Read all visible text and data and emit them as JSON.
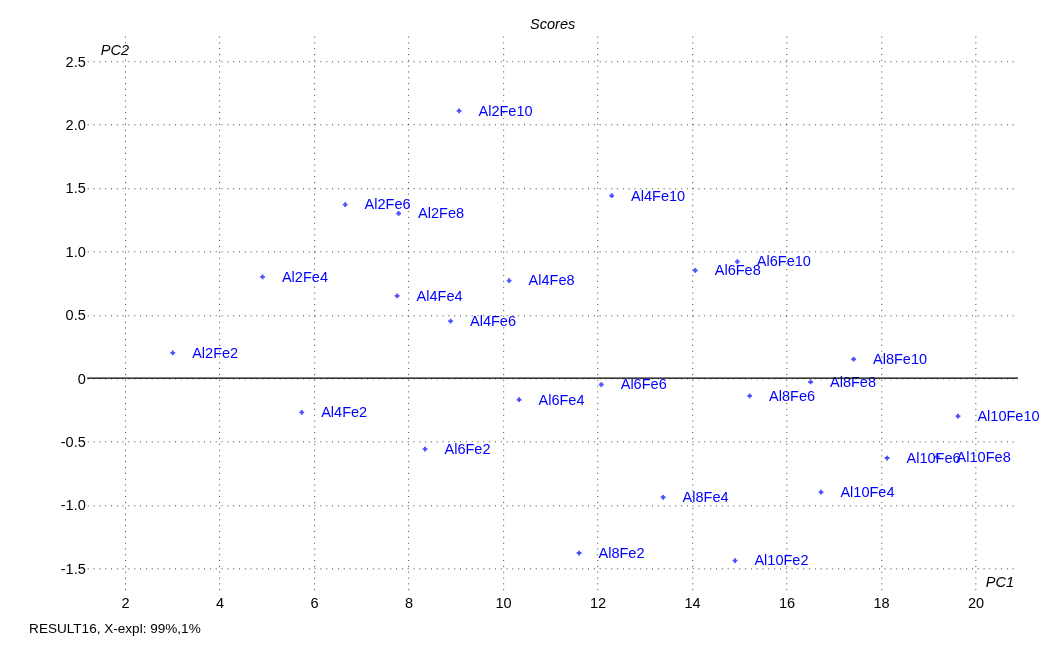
{
  "chart_data": {
    "type": "scatter",
    "title": "Scores",
    "xlabel": "PC1",
    "ylabel": "PC2",
    "xlim": [
      1.2,
      20.9
    ],
    "ylim": [
      -1.7,
      2.7
    ],
    "xticks": [
      2,
      4,
      6,
      8,
      10,
      12,
      14,
      16,
      18,
      20
    ],
    "yticks": [
      -1.5,
      {
        "value": -1,
        "label": "-1.0"
      },
      -0.5,
      0,
      0.5,
      {
        "value": 1,
        "label": "1.0"
      },
      1.5,
      {
        "value": 2,
        "label": "2.0"
      },
      2.5
    ],
    "grid": true,
    "marker": "cross",
    "ref_lines": [
      {
        "axis": "y",
        "value": 0,
        "color": "#000000"
      }
    ],
    "series": [
      {
        "color": "#0000ff",
        "x": [
          9.07,
          6.66,
          7.79,
          4.91,
          7.76,
          8.89,
          10.13,
          12.3,
          14.07,
          14.96,
          3.01,
          5.74,
          8.35,
          10.34,
          12.08,
          15.22,
          16.51,
          17.42,
          19.63,
          18.13,
          19.19,
          16.73,
          13.39,
          11.61,
          14.91
        ],
        "values": [
          2.11,
          1.37,
          1.3,
          0.8,
          0.65,
          0.45,
          0.77,
          1.44,
          0.85,
          0.92,
          0.2,
          -0.27,
          -0.56,
          -0.17,
          -0.05,
          -0.14,
          -0.03,
          0.15,
          -0.3,
          -0.63,
          -0.62,
          -0.9,
          -0.94,
          -1.38,
          -1.44
        ]
      }
    ],
    "annotations": [
      {
        "text": "Al2Fe10",
        "x": 9.07,
        "y": 2.11
      },
      {
        "text": "Al2Fe6",
        "x": 6.66,
        "y": 1.37
      },
      {
        "text": "Al2Fe8",
        "x": 7.79,
        "y": 1.3
      },
      {
        "text": "Al2Fe4",
        "x": 4.91,
        "y": 0.8
      },
      {
        "text": "Al4Fe4",
        "x": 7.76,
        "y": 0.65
      },
      {
        "text": "Al4Fe6",
        "x": 8.89,
        "y": 0.45
      },
      {
        "text": "Al4Fe8",
        "x": 10.13,
        "y": 0.77
      },
      {
        "text": "Al4Fe10",
        "x": 12.3,
        "y": 1.44
      },
      {
        "text": "Al6Fe8",
        "x": 14.07,
        "y": 0.85
      },
      {
        "text": "Al6Fe10",
        "x": 14.96,
        "y": 0.92
      },
      {
        "text": "Al2Fe2",
        "x": 3.01,
        "y": 0.2
      },
      {
        "text": "Al4Fe2",
        "x": 5.74,
        "y": -0.27
      },
      {
        "text": "Al6Fe2",
        "x": 8.35,
        "y": -0.56
      },
      {
        "text": "Al6Fe4",
        "x": 10.34,
        "y": -0.17
      },
      {
        "text": "Al6Fe6",
        "x": 12.08,
        "y": -0.05
      },
      {
        "text": "Al8Fe6",
        "x": 15.22,
        "y": -0.14
      },
      {
        "text": "Al8Fe8",
        "x": 16.51,
        "y": -0.03
      },
      {
        "text": "Al8Fe10",
        "x": 17.42,
        "y": 0.15
      },
      {
        "text": "Al10Fe10",
        "x": 19.63,
        "y": -0.3
      },
      {
        "text": "Al10Fe6",
        "x": 18.13,
        "y": -0.63
      },
      {
        "text": "Al10Fe8",
        "x": 19.19,
        "y": -0.62
      },
      {
        "text": "Al10Fe4",
        "x": 16.73,
        "y": -0.9
      },
      {
        "text": "Al8Fe4",
        "x": 13.39,
        "y": -0.94
      },
      {
        "text": "Al8Fe2",
        "x": 11.61,
        "y": -1.38
      },
      {
        "text": "Al10Fe2",
        "x": 14.91,
        "y": -1.44
      },
      "RESULT16,  X-expl: 99%,1%"
    ]
  }
}
